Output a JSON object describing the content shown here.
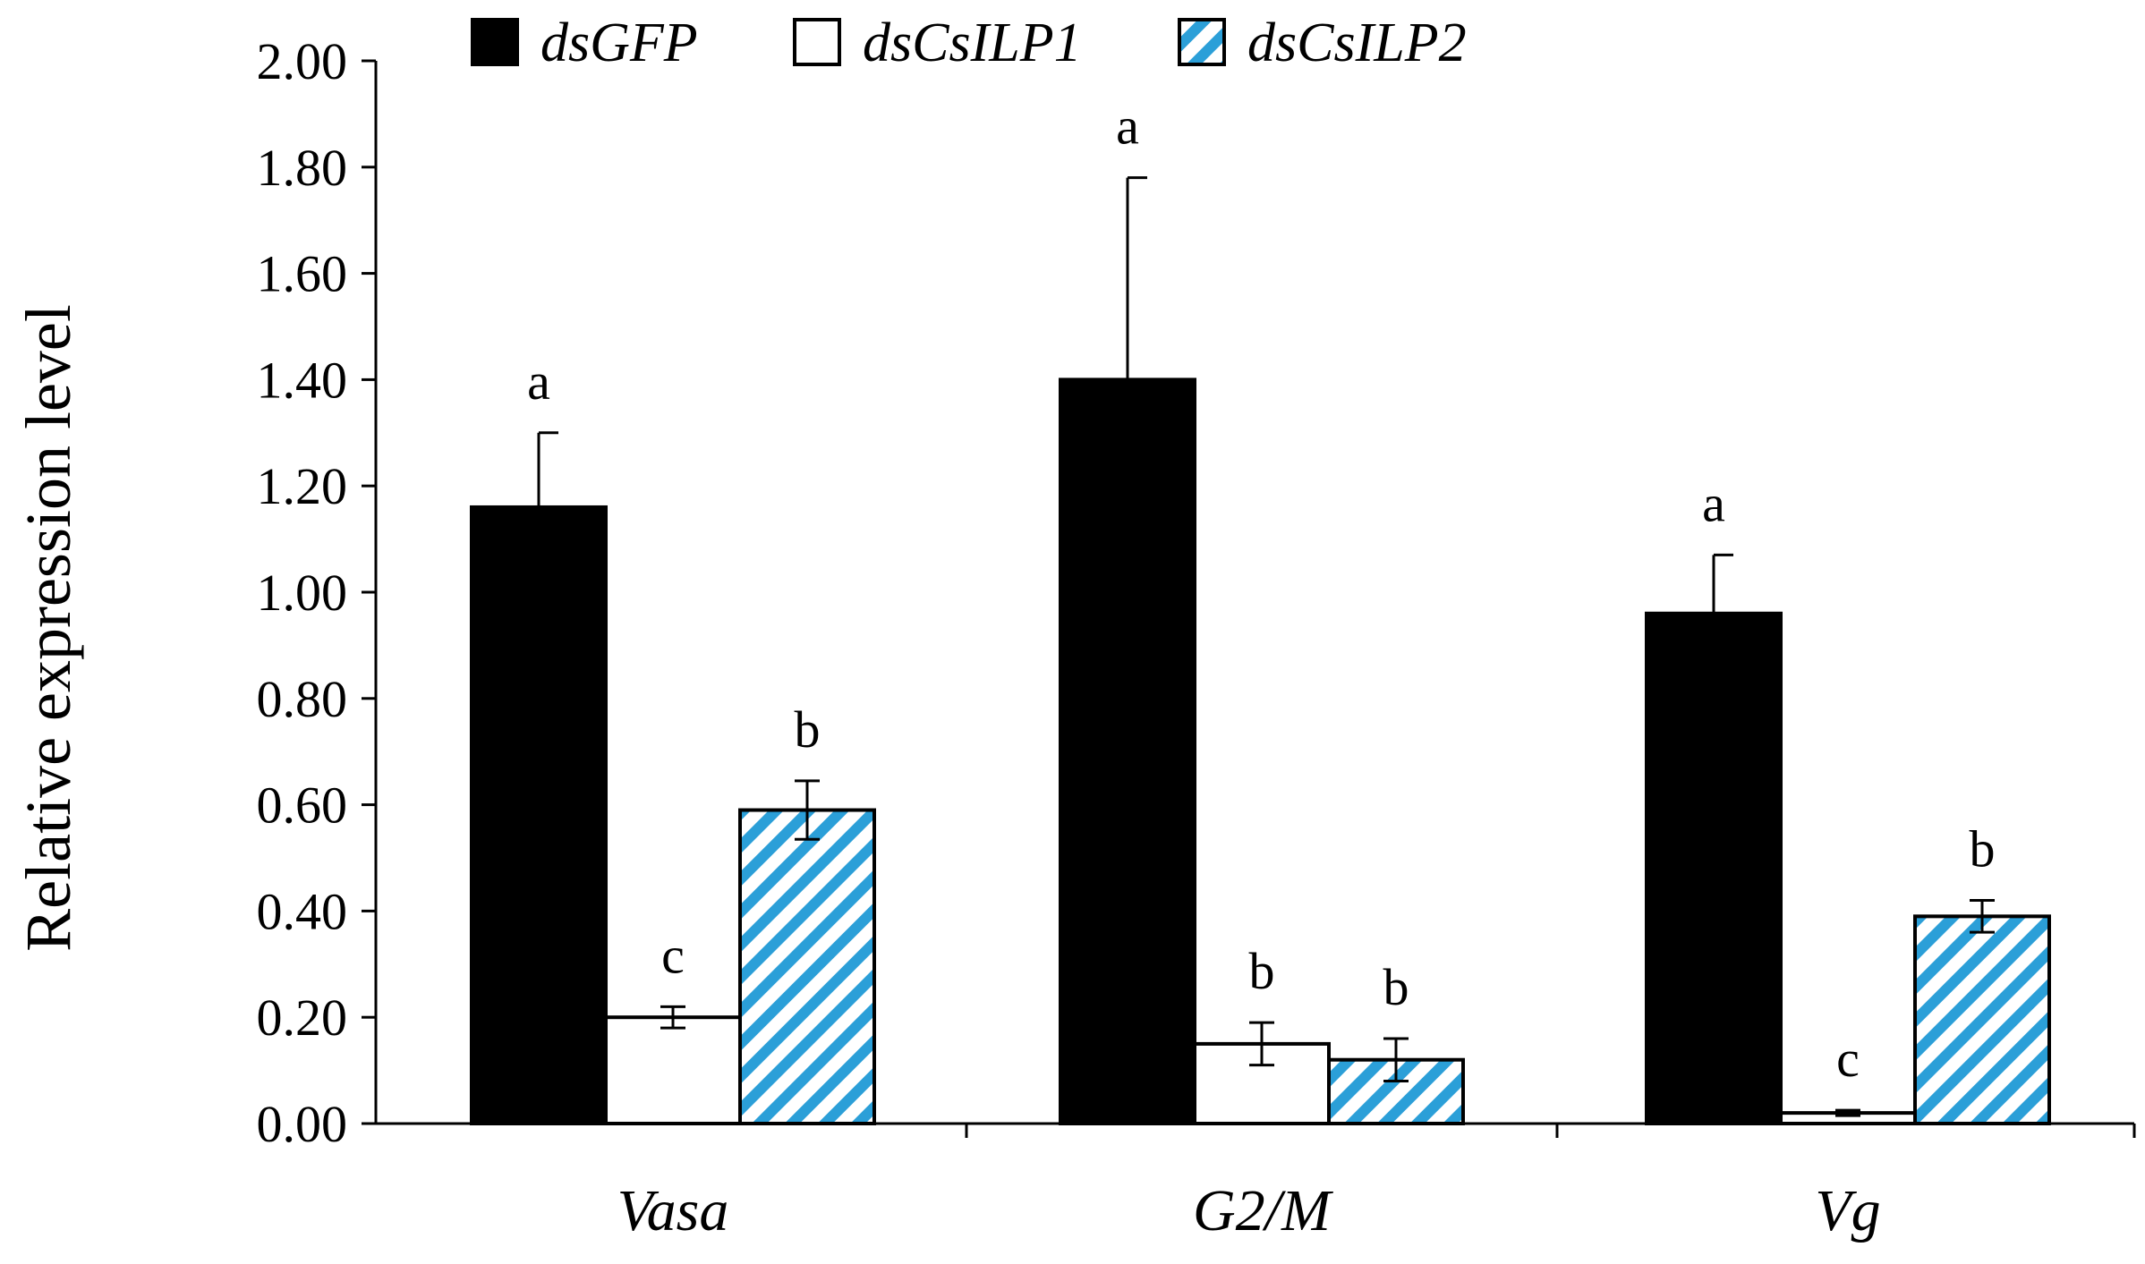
{
  "chart_data": {
    "type": "bar",
    "title": "",
    "xlabel": "",
    "ylabel": "Relative expression level",
    "ylim": [
      0,
      2.0
    ],
    "yticks": [
      "0.00",
      "0.20",
      "0.40",
      "0.60",
      "0.80",
      "1.00",
      "1.20",
      "1.40",
      "1.60",
      "1.80",
      "2.00"
    ],
    "categories": [
      "Vasa",
      "G2/M",
      "Vg"
    ],
    "legend_position": "top",
    "grid": false,
    "series": [
      {
        "name": "dsGFP",
        "fill": "#000000",
        "pattern": "solid",
        "values": [
          1.16,
          1.4,
          0.96
        ],
        "errors": [
          0.14,
          0.38,
          0.11
        ],
        "significance": [
          "a",
          "a",
          "a"
        ]
      },
      {
        "name": "dsCsILP1",
        "fill": "#ffffff",
        "pattern": "empty",
        "values": [
          0.2,
          0.15,
          0.02
        ],
        "errors": [
          0.02,
          0.04,
          0.005
        ],
        "significance": [
          "c",
          "b",
          "c"
        ]
      },
      {
        "name": "dsCsILP2",
        "fill": "#2b9fd8",
        "pattern": "diagonal-stripes",
        "values": [
          0.59,
          0.12,
          0.39
        ],
        "errors": [
          0.055,
          0.04,
          0.03
        ],
        "significance": [
          "b",
          "b",
          "b"
        ]
      }
    ]
  }
}
